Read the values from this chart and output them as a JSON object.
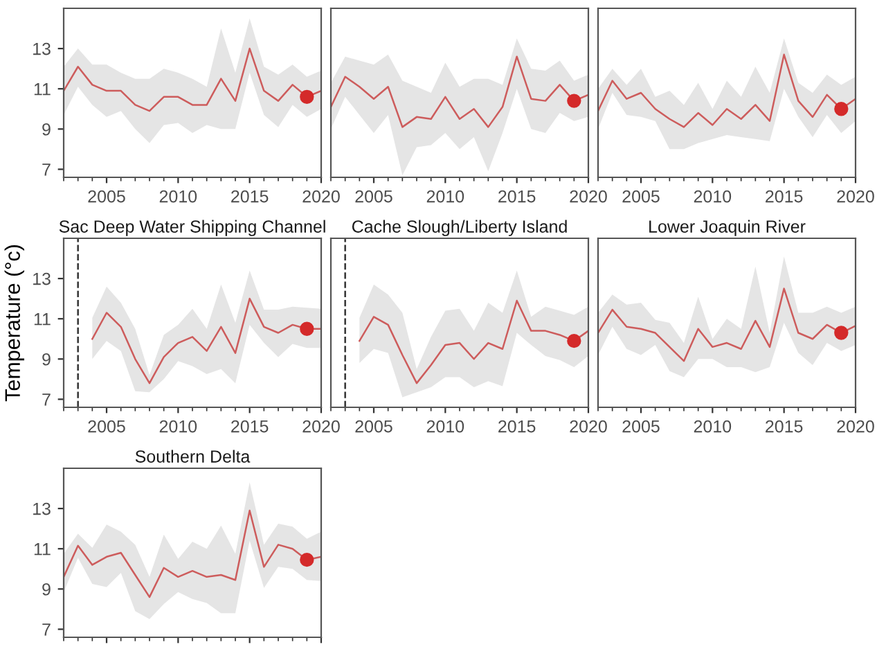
{
  "chart_data": [
    {
      "type": "line",
      "x": [
        2002,
        2003,
        2004,
        2005,
        2006,
        2007,
        2008,
        2009,
        2010,
        2011,
        2012,
        2013,
        2014,
        2015,
        2016,
        2017,
        2018,
        2019,
        2020
      ],
      "xlim": [
        2002,
        2020
      ],
      "xticks": [
        2005,
        2010,
        2015,
        2020
      ],
      "ylim": [
        6.6,
        15
      ],
      "yticks": [
        7,
        9,
        11,
        13
      ],
      "series": [
        {
          "color": "#cd5c5c",
          "values": [
            10.9,
            12.1,
            11.2,
            10.9,
            10.9,
            10.2,
            9.9,
            10.6,
            10.6,
            10.2,
            10.2,
            11.5,
            10.4,
            13.0,
            10.9,
            10.4,
            11.2,
            10.6,
            10.9
          ],
          "lower": [
            9.7,
            11.1,
            10.2,
            9.6,
            9.9,
            9.0,
            8.3,
            9.2,
            9.3,
            8.8,
            9.2,
            9.0,
            9.0,
            11.8,
            9.7,
            9.1,
            10.2,
            9.6,
            10.0
          ],
          "upper": [
            12.1,
            13.0,
            12.2,
            12.2,
            11.8,
            11.5,
            11.5,
            12.0,
            11.8,
            11.5,
            11.1,
            14.0,
            11.8,
            14.5,
            12.1,
            11.7,
            12.2,
            11.6,
            11.9
          ]
        },
        {
          "type": "scatter",
          "x": [
            2019
          ],
          "color": "#d42a2a",
          "values": [
            10.6
          ]
        }
      ]
    },
    {
      "type": "line",
      "x": [
        2002,
        2003,
        2004,
        2005,
        2006,
        2007,
        2008,
        2009,
        2010,
        2011,
        2012,
        2013,
        2014,
        2015,
        2016,
        2017,
        2018,
        2019,
        2020
      ],
      "xlim": [
        2002,
        2020
      ],
      "xticks": [
        2005,
        2010,
        2015,
        2020
      ],
      "ylim": [
        6.6,
        15
      ],
      "yticks": [
        7,
        9,
        11,
        13
      ],
      "tick_labels": "x",
      "series": [
        {
          "color": "#cd5c5c",
          "values": [
            10.1,
            11.6,
            11.1,
            10.5,
            11.1,
            9.1,
            9.6,
            9.5,
            10.6,
            9.5,
            10.0,
            9.1,
            10.1,
            12.6,
            10.5,
            10.4,
            11.2,
            10.4,
            10.7
          ],
          "lower": [
            9.0,
            10.6,
            9.7,
            8.8,
            9.7,
            6.7,
            8.1,
            8.2,
            8.8,
            8.0,
            8.6,
            6.9,
            8.8,
            11.0,
            9.0,
            8.8,
            9.8,
            9.4,
            9.6
          ],
          "upper": [
            11.3,
            12.6,
            12.4,
            12.2,
            12.7,
            11.4,
            11.1,
            10.8,
            12.3,
            11.1,
            11.5,
            11.5,
            11.2,
            13.5,
            12.0,
            11.9,
            12.4,
            11.4,
            11.7
          ]
        },
        {
          "type": "scatter",
          "x": [
            2019
          ],
          "color": "#d42a2a",
          "values": [
            10.4
          ]
        }
      ]
    },
    {
      "type": "line",
      "x": [
        2002,
        2003,
        2004,
        2005,
        2006,
        2007,
        2008,
        2009,
        2010,
        2011,
        2012,
        2013,
        2014,
        2015,
        2016,
        2017,
        2018,
        2019,
        2020
      ],
      "xlim": [
        2002,
        2020
      ],
      "xticks": [
        2005,
        2010,
        2015,
        2020
      ],
      "ylim": [
        6.6,
        15
      ],
      "yticks": [
        7,
        9,
        11,
        13
      ],
      "tick_labels": "x",
      "series": [
        {
          "color": "#cd5c5c",
          "values": [
            9.9,
            11.4,
            10.5,
            10.8,
            10.0,
            9.5,
            9.1,
            9.8,
            9.2,
            10.0,
            9.5,
            10.2,
            9.4,
            12.7,
            10.4,
            9.6,
            10.7,
            10.0,
            10.5
          ],
          "lower": [
            9.0,
            10.8,
            9.7,
            9.6,
            9.4,
            8.0,
            8.0,
            8.3,
            8.5,
            8.7,
            8.6,
            8.5,
            8.4,
            11.0,
            9.6,
            8.6,
            9.7,
            8.8,
            9.4
          ],
          "upper": [
            11.0,
            12.0,
            11.2,
            12.0,
            10.6,
            10.9,
            10.2,
            11.3,
            10.0,
            11.4,
            10.6,
            12.1,
            10.8,
            13.5,
            11.3,
            10.8,
            11.7,
            11.2,
            11.6
          ]
        },
        {
          "type": "scatter",
          "x": [
            2019
          ],
          "color": "#d42a2a",
          "values": [
            10.0
          ]
        }
      ]
    },
    {
      "type": "line",
      "title": "Sac Deep Water Shipping Channel",
      "ylabel": "Temperature (°c)",
      "xlim": [
        2002,
        2020
      ],
      "xticks": [
        2005,
        2010,
        2015,
        2020
      ],
      "ylim": [
        6.6,
        15
      ],
      "yticks": [
        7,
        9,
        11,
        13
      ],
      "ref_lines": [
        {
          "axis": "x",
          "value": 2003,
          "line_style": "dashed",
          "color": "#333333"
        }
      ],
      "series": [
        {
          "x": [
            2004,
            2005,
            2006,
            2007,
            2008,
            2009,
            2010,
            2011,
            2012,
            2013,
            2014,
            2015,
            2016,
            2017,
            2018,
            2019,
            2020
          ],
          "color": "#cd5c5c",
          "values": [
            10.0,
            11.3,
            10.6,
            9.0,
            7.8,
            9.1,
            9.8,
            10.1,
            9.4,
            10.6,
            9.3,
            12.0,
            10.6,
            10.3,
            10.7,
            10.5,
            10.5
          ],
          "lower": [
            9.0,
            9.9,
            9.4,
            7.4,
            7.35,
            8.0,
            8.9,
            8.65,
            8.25,
            8.5,
            7.8,
            10.7,
            9.8,
            9.1,
            9.75,
            9.55,
            9.55
          ],
          "upper": [
            11.05,
            12.6,
            11.8,
            10.5,
            8.2,
            10.2,
            10.7,
            11.5,
            10.5,
            12.7,
            10.8,
            13.4,
            11.45,
            11.45,
            11.6,
            11.55,
            11.5
          ]
        },
        {
          "type": "scatter",
          "x": [
            2019
          ],
          "color": "#d42a2a",
          "values": [
            10.5
          ]
        }
      ]
    },
    {
      "type": "line",
      "title": "Cache Slough/Liberty Island",
      "xlim": [
        2002,
        2020
      ],
      "xticks": [
        2005,
        2010,
        2015,
        2020
      ],
      "ylim": [
        6.6,
        15
      ],
      "yticks": [
        7,
        9,
        11,
        13
      ],
      "tick_labels": "x",
      "ref_lines": [
        {
          "axis": "x",
          "value": 2003,
          "line_style": "dashed",
          "color": "#333333"
        }
      ],
      "series": [
        {
          "x": [
            2004,
            2005,
            2006,
            2007,
            2008,
            2009,
            2010,
            2011,
            2012,
            2013,
            2014,
            2015,
            2016,
            2017,
            2018,
            2019,
            2020
          ],
          "color": "#cd5c5c",
          "values": [
            9.9,
            11.1,
            10.7,
            9.2,
            7.8,
            8.7,
            9.7,
            9.8,
            9.0,
            9.8,
            9.5,
            11.9,
            10.4,
            10.4,
            10.2,
            9.9,
            10.4
          ],
          "lower": [
            8.8,
            9.5,
            9.3,
            7.1,
            7.35,
            7.6,
            8.1,
            8.1,
            7.6,
            7.9,
            7.65,
            10.3,
            9.7,
            9.15,
            8.95,
            8.6,
            9.15
          ],
          "upper": [
            11.05,
            12.7,
            12.2,
            11.3,
            8.5,
            10.1,
            11.4,
            11.5,
            10.4,
            11.8,
            11.3,
            13.4,
            11.1,
            11.6,
            11.4,
            11.2,
            11.6
          ]
        },
        {
          "type": "scatter",
          "x": [
            2019
          ],
          "color": "#d42a2a",
          "values": [
            9.9
          ]
        }
      ]
    },
    {
      "type": "line",
      "title": "Lower Joaquin River",
      "x": [
        2002,
        2003,
        2004,
        2005,
        2006,
        2007,
        2008,
        2009,
        2010,
        2011,
        2012,
        2013,
        2014,
        2015,
        2016,
        2017,
        2018,
        2019,
        2020
      ],
      "xlim": [
        2002,
        2020
      ],
      "xticks": [
        2005,
        2010,
        2015,
        2020
      ],
      "ylim": [
        6.6,
        15
      ],
      "yticks": [
        7,
        9,
        11,
        13
      ],
      "tick_labels": "x",
      "series": [
        {
          "color": "#cd5c5c",
          "values": [
            10.3,
            11.45,
            10.6,
            10.5,
            10.3,
            9.6,
            8.9,
            10.5,
            9.6,
            9.8,
            9.5,
            10.9,
            9.6,
            12.5,
            10.3,
            10.0,
            10.7,
            10.3,
            10.65
          ],
          "lower": [
            9.2,
            10.6,
            9.5,
            9.2,
            9.7,
            8.4,
            8.1,
            9.0,
            9.0,
            8.6,
            8.6,
            8.35,
            8.6,
            10.8,
            9.3,
            8.7,
            9.8,
            9.4,
            9.7
          ],
          "upper": [
            11.3,
            12.2,
            11.7,
            11.8,
            10.95,
            10.8,
            9.8,
            12.1,
            10.0,
            11.0,
            10.5,
            13.6,
            10.3,
            14.1,
            11.3,
            11.3,
            11.6,
            11.3,
            11.6
          ]
        },
        {
          "type": "scatter",
          "x": [
            2019
          ],
          "color": "#d42a2a",
          "values": [
            10.3
          ]
        }
      ]
    },
    {
      "type": "line",
      "title": "Southern Delta",
      "x": [
        2002,
        2003,
        2004,
        2005,
        2006,
        2007,
        2008,
        2009,
        2010,
        2011,
        2012,
        2013,
        2014,
        2015,
        2016,
        2017,
        2018,
        2019,
        2020
      ],
      "xlim": [
        2002,
        2020
      ],
      "xticks": [
        2005,
        2010,
        2015,
        2020
      ],
      "ylim": [
        6.6,
        15
      ],
      "yticks": [
        7,
        9,
        11,
        13
      ],
      "tick_labels": "y",
      "series": [
        {
          "color": "#cd5c5c",
          "values": [
            9.6,
            11.15,
            10.2,
            10.6,
            10.8,
            9.7,
            8.6,
            10.05,
            9.6,
            9.9,
            9.6,
            9.7,
            9.45,
            12.9,
            10.1,
            11.2,
            11.0,
            10.45,
            10.6
          ],
          "lower": [
            8.85,
            10.55,
            9.25,
            9.1,
            9.8,
            7.9,
            7.5,
            8.25,
            8.85,
            8.5,
            8.3,
            7.8,
            7.8,
            11.4,
            9.05,
            10.1,
            10.0,
            9.45,
            9.4
          ],
          "upper": [
            10.75,
            11.75,
            11.05,
            12.2,
            11.85,
            11.2,
            9.6,
            11.7,
            10.5,
            11.35,
            11.0,
            12.15,
            10.75,
            14.3,
            11.2,
            12.25,
            12.1,
            11.5,
            11.85
          ]
        },
        {
          "type": "scatter",
          "x": [
            2019
          ],
          "color": "#d42a2a",
          "values": [
            10.45
          ]
        }
      ]
    }
  ]
}
